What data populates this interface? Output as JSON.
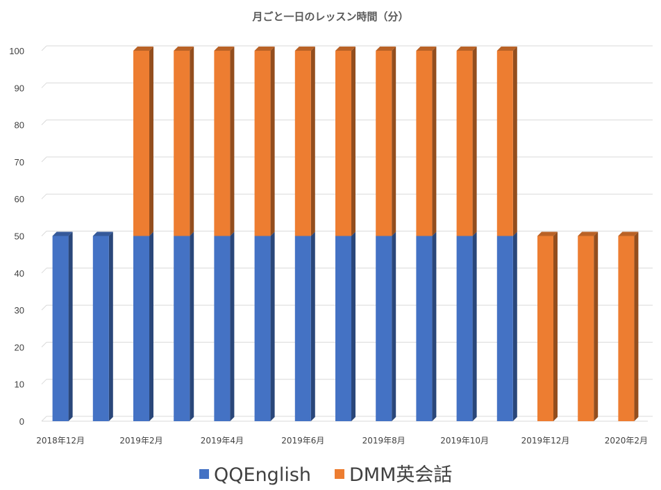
{
  "chart_data": {
    "type": "bar",
    "stacked": true,
    "title": "月ごと一日のレッスン時間（分）",
    "xlabel": "",
    "ylabel": "",
    "ylim": [
      0,
      100
    ],
    "yticks": [
      0,
      10,
      20,
      30,
      40,
      50,
      60,
      70,
      80,
      90,
      100
    ],
    "categories": [
      "2018年12月",
      "2019年1月",
      "2019年2月",
      "2019年3月",
      "2019年4月",
      "2019年5月",
      "2019年6月",
      "2019年7月",
      "2019年8月",
      "2019年9月",
      "2019年10月",
      "2019年11月",
      "2019年12月",
      "2020年1月",
      "2020年2月"
    ],
    "shown_xtick_labels": [
      "2018年12月",
      "2019年2月",
      "2019年4月",
      "2019年6月",
      "2019年8月",
      "2019年10月",
      "2019年12月",
      "2020年2月"
    ],
    "series": [
      {
        "name": "QQEnglish",
        "color": "#4472C4",
        "values": [
          50,
          50,
          50,
          50,
          50,
          50,
          50,
          50,
          50,
          50,
          50,
          50,
          0,
          0,
          0
        ]
      },
      {
        "name": "DMM英会話",
        "color": "#ED7D31",
        "values": [
          0,
          0,
          50,
          50,
          50,
          50,
          50,
          50,
          50,
          50,
          50,
          50,
          50,
          50,
          50
        ]
      }
    ],
    "grid": true,
    "legend_position": "bottom",
    "style": "3d-column"
  }
}
